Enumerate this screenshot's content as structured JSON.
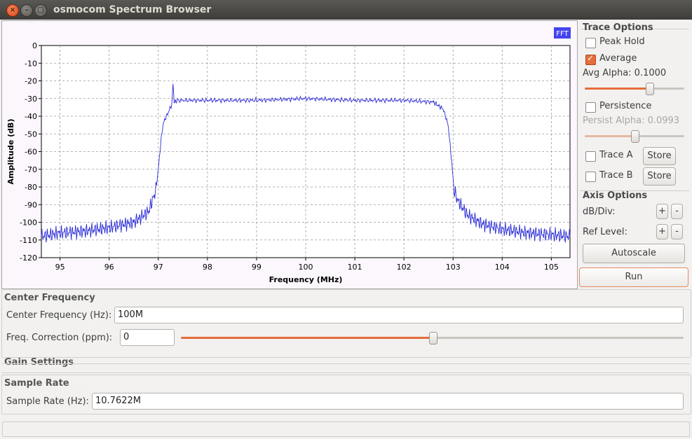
{
  "window": {
    "title": "osmocom Spectrum Browser"
  },
  "plot": {
    "badge": "FFT",
    "xlabel": "Frequency (MHz)",
    "ylabel": "Amplitude (dB)",
    "trace_color": "#2b2bd6"
  },
  "chart_data": {
    "type": "line",
    "title": "",
    "xlabel": "Frequency (MHz)",
    "ylabel": "Amplitude (dB)",
    "xlim": [
      94.62,
      105.38
    ],
    "ylim": [
      -120,
      0
    ],
    "xticks": [
      "95",
      "96",
      "97",
      "98",
      "99",
      "100",
      "101",
      "102",
      "103",
      "104",
      "105"
    ],
    "yticks": [
      "0",
      "-10",
      "-20",
      "-30",
      "-40",
      "-50",
      "-60",
      "-70",
      "-80",
      "-90",
      "-100",
      "-110",
      "-120"
    ],
    "grid": true,
    "series": [
      {
        "x": [
          94.62,
          95.0,
          95.5,
          96.0,
          96.5,
          96.8,
          96.95,
          97.0,
          97.05,
          97.1,
          97.2,
          97.28,
          97.3,
          97.32,
          97.4,
          98.0,
          99.0,
          100.0,
          101.0,
          102.0,
          102.6,
          102.8,
          102.9,
          102.97,
          103.02,
          103.1,
          103.3,
          103.6,
          104.0,
          104.5,
          105.0,
          105.38
        ],
        "y": [
          -108,
          -106,
          -105,
          -103,
          -100,
          -94,
          -82,
          -70,
          -55,
          -44,
          -38,
          -33,
          -20,
          -32,
          -31,
          -31,
          -31,
          -30,
          -31,
          -31,
          -32,
          -36,
          -45,
          -65,
          -82,
          -88,
          -96,
          -101,
          -104,
          -106,
          -107,
          -108
        ]
      }
    ]
  },
  "trace_options": {
    "title": "Trace Options",
    "peak_hold": {
      "label": "Peak Hold",
      "checked": false
    },
    "average": {
      "label": "Average",
      "checked": true
    },
    "avg_alpha_label": "Avg Alpha: 0.1000",
    "avg_alpha_level": 0.65,
    "persistence": {
      "label": "Persistence",
      "checked": false
    },
    "persist_alpha_label": "Persist Alpha: 0.0993",
    "persist_alpha_level": 0.5,
    "trace_a": {
      "label": "Trace A",
      "checked": false,
      "store_label": "Store"
    },
    "trace_b": {
      "label": "Trace B",
      "checked": false,
      "store_label": "Store"
    }
  },
  "axis_options": {
    "title": "Axis Options",
    "db_div_label": "dB/Div:",
    "ref_level_label": "Ref Level:",
    "plus": "+",
    "minus": "-",
    "autoscale_label": "Autoscale",
    "run_label": "Run"
  },
  "center_frequency": {
    "group_title": "Center Frequency",
    "label": "Center Frequency (Hz):",
    "value": "100M",
    "correction_label": "Freq. Correction (ppm):",
    "correction_value": "0",
    "correction_level": 0.5
  },
  "gain_settings": {
    "group_title": "Gain Settings"
  },
  "sample_rate": {
    "group_title": "Sample Rate",
    "label": "Sample Rate (Hz):",
    "value": "10.7622M"
  },
  "colors": {
    "accent": "#e56d3a",
    "trace": "#2b2bd6",
    "badge": "#4444ee"
  }
}
